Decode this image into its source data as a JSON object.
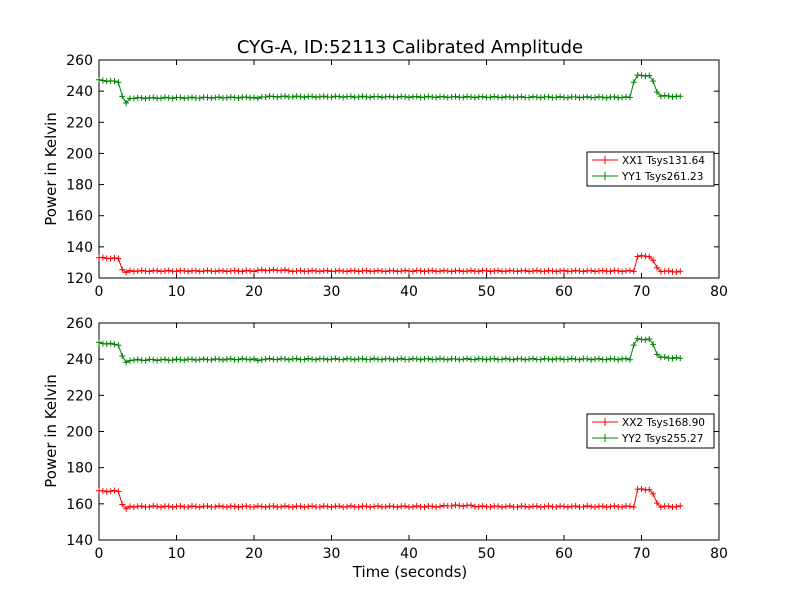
{
  "chart_data": {
    "type": "line",
    "title": "CYG-A, ID:52113 Calibrated Amplitude",
    "xlabel": "Time (seconds)",
    "xlim": [
      0,
      80
    ],
    "x_ticks": [
      "0",
      "10",
      "20",
      "30",
      "40",
      "50",
      "60",
      "70",
      "80"
    ],
    "legend_placement": "center-right",
    "colors": {
      "xx": "#ff0000",
      "yy": "#008000"
    },
    "panels": [
      {
        "ylabel": "Power in Kelvin",
        "ylim": [
          120,
          260
        ],
        "y_ticks": [
          "120",
          "140",
          "160",
          "180",
          "200",
          "220",
          "240",
          "260"
        ],
        "series": [
          {
            "name": "XX1 Tsys131.64",
            "color": "#ff0000",
            "points": [
              [
                0,
                133
              ],
              [
                2.5,
                132.5
              ],
              [
                3.2,
                123
              ],
              [
                3.5,
                123.5
              ],
              [
                4,
                124.5
              ],
              [
                20,
                124.5
              ],
              [
                21,
                125
              ],
              [
                24,
                125
              ],
              [
                24.5,
                124.5
              ],
              [
                69,
                124.5
              ],
              [
                69.4,
                134
              ],
              [
                71.2,
                134
              ],
              [
                72.2,
                124.5
              ],
              [
                75,
                124
              ]
            ]
          },
          {
            "name": "YY1 Tsys261.23",
            "color": "#008000",
            "points": [
              [
                0,
                247
              ],
              [
                2.5,
                246
              ],
              [
                3.2,
                233
              ],
              [
                3.5,
                232
              ],
              [
                4,
                235.5
              ],
              [
                20,
                236
              ],
              [
                20.5,
                235
              ],
              [
                21,
                236.5
              ],
              [
                68.5,
                236
              ],
              [
                69.2,
                250
              ],
              [
                71.2,
                250
              ],
              [
                72.2,
                237
              ],
              [
                75,
                236.5
              ]
            ]
          }
        ]
      },
      {
        "ylabel": "Power in Kelvin",
        "ylim": [
          140,
          260
        ],
        "y_ticks": [
          "140",
          "160",
          "180",
          "200",
          "220",
          "240",
          "260"
        ],
        "series": [
          {
            "name": "XX2 Tsys168.90",
            "color": "#ff0000",
            "points": [
              [
                0,
                167
              ],
              [
                2.5,
                167
              ],
              [
                3.2,
                157
              ],
              [
                3.5,
                157
              ],
              [
                4,
                158.5
              ],
              [
                44,
                158.5
              ],
              [
                45,
                159
              ],
              [
                48,
                159
              ],
              [
                49,
                158.5
              ],
              [
                69,
                158.5
              ],
              [
                69.4,
                168
              ],
              [
                71.2,
                168
              ],
              [
                72.2,
                158.5
              ],
              [
                75,
                158.5
              ]
            ]
          },
          {
            "name": "YY2 Tsys255.27",
            "color": "#008000",
            "points": [
              [
                0,
                249
              ],
              [
                2.5,
                248
              ],
              [
                3.2,
                239
              ],
              [
                3.5,
                238
              ],
              [
                4,
                239.5
              ],
              [
                20,
                240
              ],
              [
                20.5,
                239
              ],
              [
                21,
                240
              ],
              [
                68.5,
                240
              ],
              [
                69.2,
                251
              ],
              [
                71.2,
                251
              ],
              [
                72.2,
                241
              ],
              [
                75,
                240.5
              ]
            ]
          }
        ]
      }
    ]
  }
}
